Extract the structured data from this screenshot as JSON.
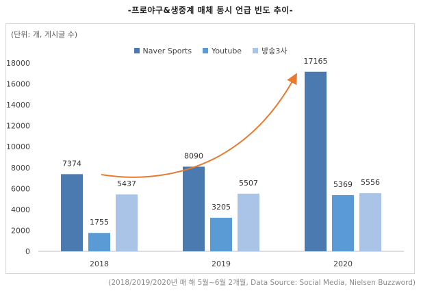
{
  "title": "-프로야구&생중계 매체 동시 언급 빈도 추이-",
  "unit_label": "(단위: 개, 게시글 수)",
  "note": "(2018/2019/2020년 매 해 5월~6월 2개월, Data Source: Social Media, Nielsen Buzzword)",
  "chart_data": {
    "type": "bar",
    "title": "-프로야구&생중계 매체 동시 언급 빈도 추이-",
    "categories": [
      "2018",
      "2019",
      "2020"
    ],
    "series": [
      {
        "name": "Naver Sports",
        "values": [
          7374,
          8090,
          17165
        ],
        "color": "#4a7ab0"
      },
      {
        "name": "Youtube",
        "values": [
          1755,
          3205,
          5369
        ],
        "color": "#5b9bd5"
      },
      {
        "name": "방송3사",
        "values": [
          5437,
          5507,
          5556
        ],
        "color": "#a9c4e6"
      }
    ],
    "ylim": [
      0,
      18000
    ],
    "yticks": [
      0,
      2000,
      4000,
      6000,
      8000,
      10000,
      12000,
      14000,
      16000,
      18000
    ],
    "grid": false,
    "legend_position": "top-center",
    "annotation": "orange upward trend arrow",
    "arrow_color": "#e8792f"
  }
}
